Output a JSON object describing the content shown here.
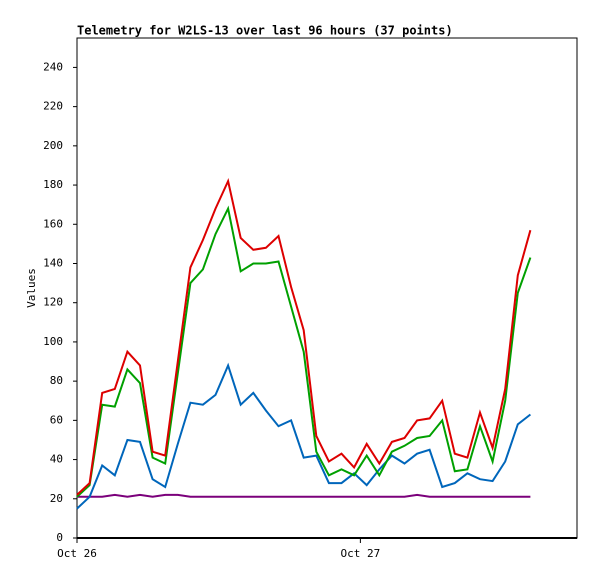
{
  "chart_data": {
    "type": "line",
    "title": "Telemetry for W2LS-13 over last 96 hours (37 points)",
    "ylabel": "Values",
    "categories": [
      null,
      null,
      null,
      null,
      null,
      null,
      null,
      null,
      null,
      null,
      null,
      null,
      null,
      null,
      null,
      null,
      null,
      null,
      null,
      null,
      null,
      null,
      null,
      null,
      null,
      null,
      null,
      null,
      null,
      null,
      null,
      null,
      null,
      null,
      null,
      null,
      null
    ],
    "xlim": [
      0,
      39.7
    ],
    "xticks": [
      {
        "value": 0,
        "label": "Oct 26"
      },
      {
        "value": 22.5,
        "label": "Oct 27"
      }
    ],
    "ylim": [
      0,
      255
    ],
    "yticks": [
      0,
      20,
      40,
      60,
      80,
      100,
      120,
      140,
      160,
      180,
      200,
      220,
      240
    ],
    "series": [
      {
        "color": "#7b007b",
        "values": [
          21,
          21,
          21,
          22,
          21,
          22,
          21,
          22,
          22,
          21,
          21,
          21,
          21,
          21,
          21,
          21,
          21,
          21,
          21,
          21,
          21,
          21,
          21,
          21,
          21,
          21,
          21,
          22,
          21,
          21,
          21,
          21,
          21,
          21,
          21,
          21,
          21
        ]
      },
      {
        "color": "#0066bb",
        "values": [
          15,
          21,
          37,
          32,
          50,
          49,
          30,
          26,
          48,
          69,
          68,
          73,
          88,
          68,
          74,
          65,
          57,
          60,
          41,
          42,
          28,
          28,
          33,
          27,
          35,
          42,
          38,
          43,
          45,
          26,
          28,
          33,
          30,
          29,
          39,
          58,
          63
        ]
      },
      {
        "color": "#00a000",
        "values": [
          21,
          27,
          68,
          67,
          86,
          79,
          41,
          38,
          84,
          130,
          137,
          155,
          168,
          136,
          140,
          140,
          141,
          118,
          95,
          44,
          32,
          35,
          32,
          42,
          32,
          44,
          47,
          51,
          52,
          60,
          34,
          35,
          57,
          39,
          70,
          125,
          143
        ]
      },
      {
        "color": "#dd0000",
        "values": [
          22,
          28,
          74,
          76,
          95,
          88,
          44,
          42,
          90,
          138,
          152,
          168,
          182,
          153,
          147,
          148,
          154,
          128,
          106,
          52,
          39,
          43,
          36,
          48,
          38,
          49,
          51,
          60,
          61,
          70,
          43,
          41,
          64,
          46,
          76,
          134,
          157
        ]
      }
    ]
  }
}
